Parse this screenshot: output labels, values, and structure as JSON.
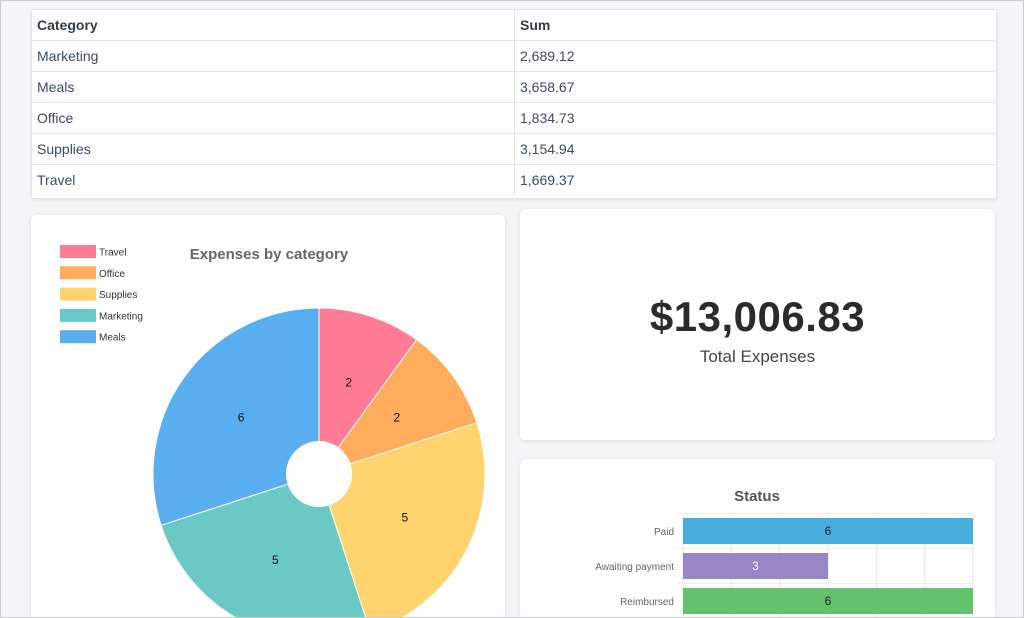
{
  "table": {
    "headers": [
      "Category",
      "Sum"
    ],
    "rows": [
      {
        "category": "Marketing",
        "sum": "2,689.12"
      },
      {
        "category": "Meals",
        "sum": "3,658.67"
      },
      {
        "category": "Office",
        "sum": "1,834.73"
      },
      {
        "category": "Supplies",
        "sum": "3,154.94"
      },
      {
        "category": "Travel",
        "sum": "1,669.37"
      }
    ]
  },
  "total": {
    "amount": "$13,006.83",
    "label": "Total Expenses"
  },
  "chart_data": [
    {
      "type": "pie",
      "title": "Expenses by category",
      "legend_position": "top-left",
      "categories": [
        "Travel",
        "Office",
        "Supplies",
        "Marketing",
        "Meals"
      ],
      "values": [
        2,
        2,
        5,
        5,
        6
      ],
      "colors": [
        "#ff7b96",
        "#ffac5c",
        "#ffd46f",
        "#6ac8c5",
        "#58aeee"
      ],
      "doughnut": true
    },
    {
      "type": "bar",
      "orientation": "horizontal",
      "title": "Status",
      "categories": [
        "Paid",
        "Awaiting payment",
        "Reimbursed"
      ],
      "values": [
        6,
        3,
        6
      ],
      "colors": [
        "#48aede",
        "#9987c5",
        "#65c26c"
      ],
      "label_colors": [
        "#222222",
        "#ffffff",
        "#222222"
      ],
      "xlim": [
        0,
        6
      ],
      "grid": true
    }
  ]
}
